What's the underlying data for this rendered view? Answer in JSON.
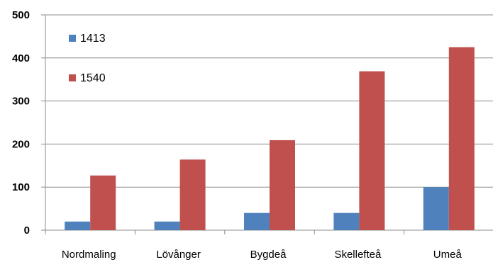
{
  "chart_data": {
    "type": "bar",
    "categories": [
      "Nordmaling",
      "Lövånger",
      "Bygdeå",
      "Skellefteå",
      "Umeå"
    ],
    "series": [
      {
        "name": "1413",
        "values": [
          20,
          20,
          40,
          40,
          100
        ],
        "color": "#4f81bd"
      },
      {
        "name": "1540",
        "values": [
          127,
          164,
          209,
          369,
          425
        ],
        "color": "#c0504d"
      }
    ],
    "yticks": [
      0,
      100,
      200,
      300,
      400,
      500
    ],
    "ylim": [
      0,
      500
    ],
    "title": "",
    "xlabel": "",
    "ylabel": "",
    "grid": true,
    "legend_position": "top-left inside plot"
  }
}
